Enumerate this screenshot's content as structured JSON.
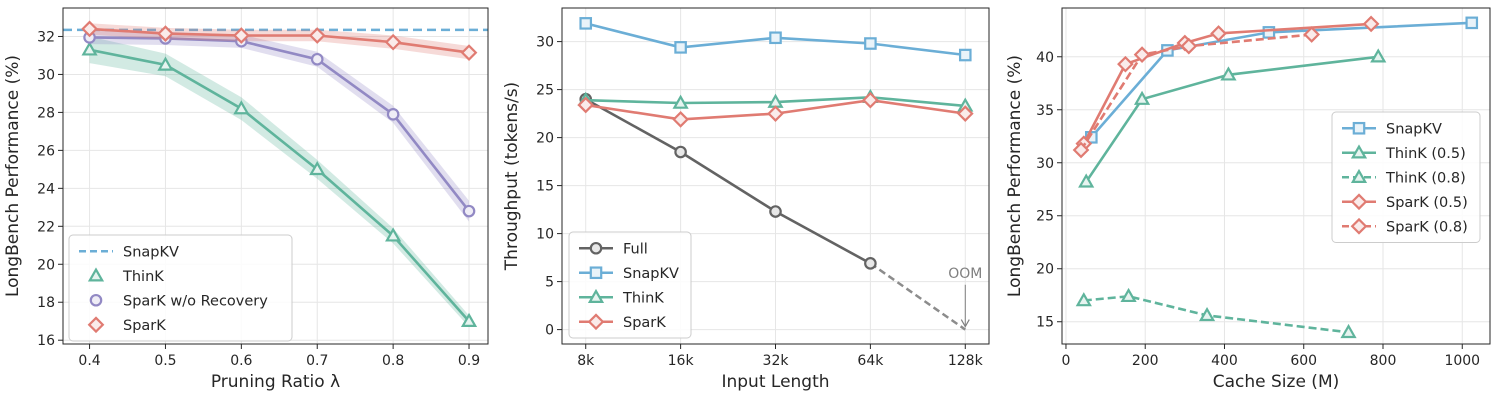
{
  "chart_data": [
    {
      "type": "line",
      "xlabel": "Pruning Ratio λ",
      "ylabel": "LongBench Performance (%)",
      "xlim": [
        0.365,
        0.925
      ],
      "ylim": [
        15.8,
        33.5
      ],
      "xticks": [
        0.4,
        0.5,
        0.6,
        0.7,
        0.8,
        0.9
      ],
      "xtick_labels": [
        "0.4",
        "0.5",
        "0.6",
        "0.7",
        "0.8",
        "0.9"
      ],
      "yticks": [
        16,
        18,
        20,
        22,
        24,
        26,
        28,
        30,
        32
      ],
      "ytick_labels": [
        "16",
        "18",
        "20",
        "22",
        "24",
        "26",
        "28",
        "30",
        "32"
      ],
      "grid": true,
      "legend_position": "lower-left",
      "x": [
        0.4,
        0.5,
        0.6,
        0.7,
        0.8,
        0.9
      ],
      "reference_line": {
        "name": "SnapKV",
        "value": 32.35,
        "color": "#6baed6",
        "style": "dashed"
      },
      "series": [
        {
          "name": "ThinK",
          "values": [
            31.3,
            30.5,
            28.2,
            25.0,
            21.5,
            17.0
          ],
          "band": [
            0.7,
            0.6,
            0.6,
            0.5,
            0.4,
            0.3
          ],
          "color": "#5fb49c",
          "marker": "triangle"
        },
        {
          "name": "SparK w/o Recovery",
          "values": [
            31.95,
            31.9,
            31.75,
            30.8,
            27.9,
            22.8
          ],
          "band": [
            0.35,
            0.35,
            0.35,
            0.4,
            0.45,
            0.55
          ],
          "color": "#9289c4",
          "marker": "circle"
        },
        {
          "name": "SparK",
          "values": [
            32.4,
            32.15,
            32.05,
            32.05,
            31.7,
            31.15
          ],
          "band": [
            0.3,
            0.3,
            0.3,
            0.3,
            0.35,
            0.35
          ],
          "color": "#e07b72",
          "marker": "diamond"
        }
      ]
    },
    {
      "type": "line",
      "xlabel": "Input Length",
      "ylabel": "Throughput (tokens/s)",
      "xlim": [
        -0.25,
        4.25
      ],
      "ylim": [
        -1.5,
        33.5
      ],
      "categories": [
        "8k",
        "16k",
        "32k",
        "64k",
        "128k"
      ],
      "yticks": [
        0,
        5,
        10,
        15,
        20,
        25,
        30
      ],
      "ytick_labels": [
        "0",
        "5",
        "10",
        "15",
        "20",
        "25",
        "30"
      ],
      "grid": true,
      "legend_position": "lower-left",
      "annotation": {
        "text": "OOM",
        "points_to": [
          4,
          0
        ],
        "text_at": [
          4,
          5.4
        ]
      },
      "series": [
        {
          "name": "Full",
          "values": [
            24.0,
            18.5,
            12.3,
            6.9,
            null
          ],
          "oom_extension": [
            [
              3,
              6.9
            ],
            [
              4,
              0
            ]
          ],
          "color": "#636363",
          "marker": "circle"
        },
        {
          "name": "SnapKV",
          "values": [
            31.9,
            29.4,
            30.4,
            29.8,
            28.6
          ],
          "color": "#6baed6",
          "marker": "square"
        },
        {
          "name": "ThinK",
          "values": [
            23.9,
            23.6,
            23.7,
            24.2,
            23.3
          ],
          "color": "#5fb49c",
          "marker": "triangle"
        },
        {
          "name": "SparK",
          "values": [
            23.4,
            21.9,
            22.5,
            23.9,
            22.5
          ],
          "color": "#e07b72",
          "marker": "diamond"
        }
      ]
    },
    {
      "type": "line",
      "xlabel": "Cache Size (M)",
      "ylabel": "LongBench Performance (%)",
      "xlim": [
        -10,
        1070
      ],
      "ylim": [
        12.9,
        44.6
      ],
      "xticks": [
        0,
        200,
        400,
        600,
        800,
        1000
      ],
      "xtick_labels": [
        "0",
        "200",
        "400",
        "600",
        "800",
        "1000"
      ],
      "yticks": [
        15,
        20,
        25,
        30,
        35,
        40
      ],
      "ytick_labels": [
        "15",
        "20",
        "25",
        "30",
        "35",
        "40"
      ],
      "grid": true,
      "legend_position": "center-right",
      "series": [
        {
          "name": "SnapKV",
          "x": [
            64,
            256,
            512,
            1024
          ],
          "values": [
            32.4,
            40.6,
            42.3,
            43.2
          ],
          "color": "#6baed6",
          "marker": "square",
          "style": "solid"
        },
        {
          "name": "ThinK (0.5)",
          "x": [
            51,
            192,
            410,
            788
          ],
          "values": [
            28.2,
            36.0,
            38.3,
            40.0
          ],
          "color": "#5fb49c",
          "marker": "triangle",
          "style": "solid"
        },
        {
          "name": "ThinK (0.8)",
          "x": [
            45,
            158,
            356,
            713
          ],
          "values": [
            17.0,
            17.4,
            15.6,
            14.0
          ],
          "color": "#5fb49c",
          "marker": "triangle",
          "style": "dashed"
        },
        {
          "name": "SparK (0.5)",
          "x": [
            45,
            150,
            300,
            385,
            770
          ],
          "values": [
            31.8,
            39.3,
            41.3,
            42.2,
            43.1
          ],
          "color": "#e07b72",
          "marker": "diamond",
          "style": "solid"
        },
        {
          "name": "SparK (0.8)",
          "x": [
            38,
            192,
            310,
            620
          ],
          "values": [
            31.2,
            40.2,
            41.0,
            42.1
          ],
          "color": "#e07b72",
          "marker": "diamond",
          "style": "dashed"
        }
      ]
    }
  ]
}
